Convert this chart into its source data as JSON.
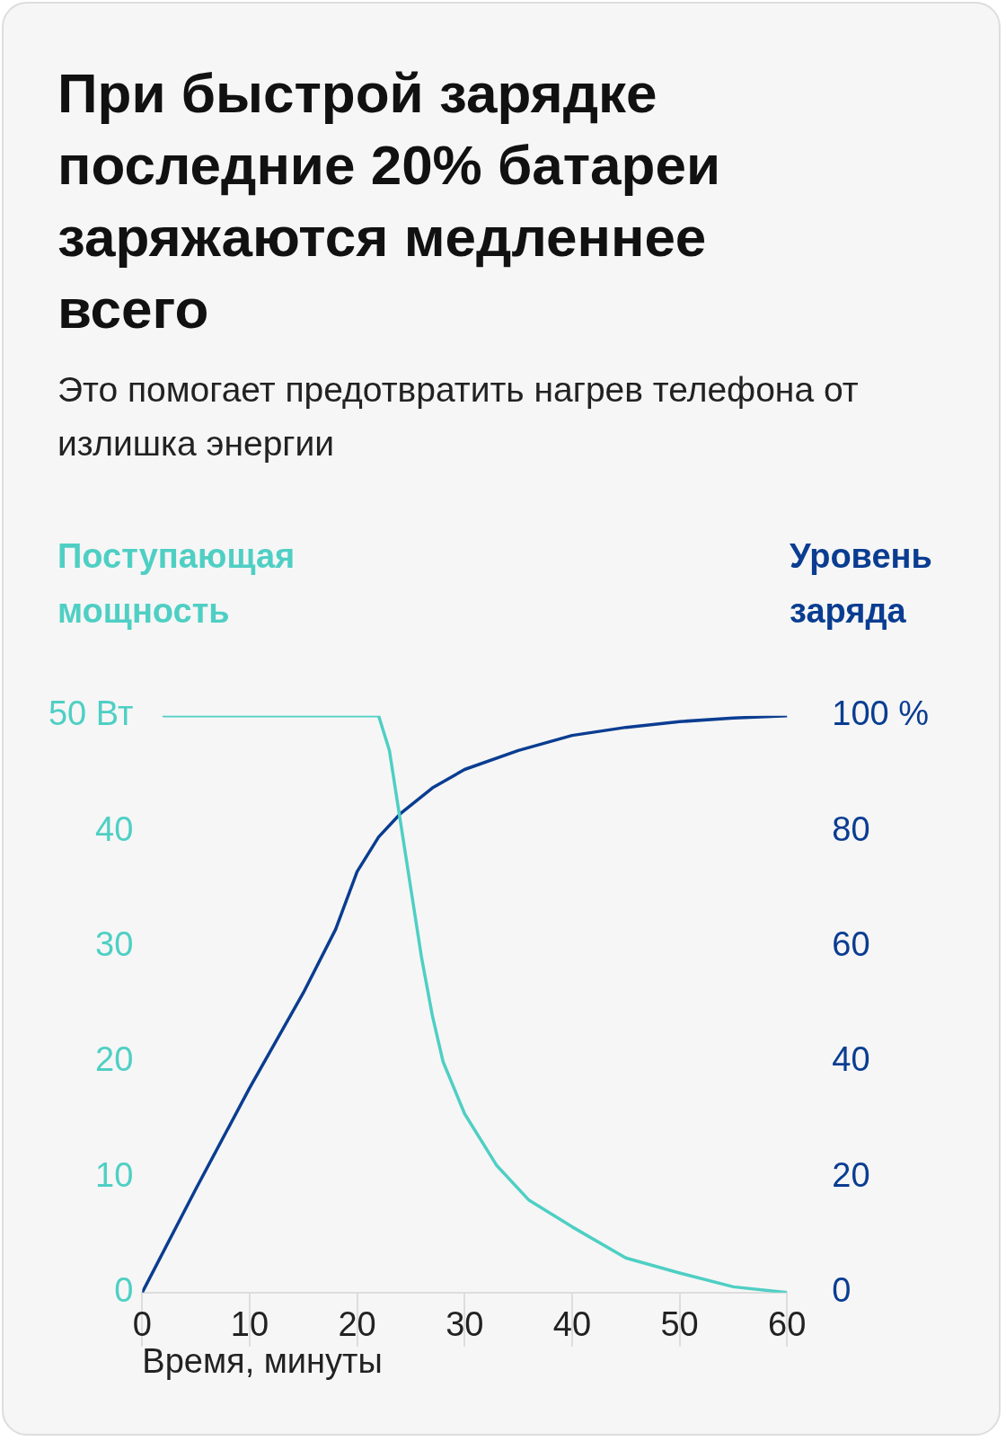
{
  "chart_data": {
    "type": "line",
    "title": "При быстрой зарядке последние 20% батареи заряжаются медленнее всего",
    "subtitle": "Это помогает предотвратить нагрев телефона от излишка энергии",
    "xlabel": "Время, минуты",
    "ylabel": "Поступающая мощность",
    "y2label": "Уровень заряда",
    "xlim": [
      0,
      60
    ],
    "xticks": [
      0,
      10,
      20,
      30,
      40,
      50,
      60
    ],
    "ylim": [
      0,
      50
    ],
    "yticks": [
      0,
      10,
      20,
      30,
      40,
      {
        "value": 50,
        "label": "50 Вт"
      }
    ],
    "y2lim": [
      0,
      100
    ],
    "y2ticks": [
      0,
      20,
      40,
      60,
      80,
      {
        "value": 100,
        "label": "100 %"
      }
    ],
    "grid": false,
    "legend": false,
    "marker": "none",
    "line_style": "solid",
    "series": [
      {
        "color": "#4fcfc4",
        "axis": "y",
        "x": [
          2,
          22,
          23,
          24,
          25,
          26,
          27,
          28,
          30,
          33,
          36,
          40,
          45,
          50,
          55,
          60
        ],
        "values": [
          50,
          50,
          47,
          41,
          35,
          29,
          24,
          20,
          15.5,
          11,
          8,
          5.7,
          3,
          1.7,
          0.5,
          0
        ]
      },
      {
        "color": "#0a3d91",
        "axis": "y2",
        "x": [
          0,
          5,
          10,
          15,
          18,
          20,
          22,
          24,
          27,
          30,
          35,
          40,
          45,
          50,
          55,
          60
        ],
        "values": [
          0,
          18,
          35.5,
          52,
          63,
          73,
          79,
          83,
          87.5,
          90.7,
          94,
          96.6,
          98,
          99,
          99.6,
          100
        ]
      }
    ]
  }
}
